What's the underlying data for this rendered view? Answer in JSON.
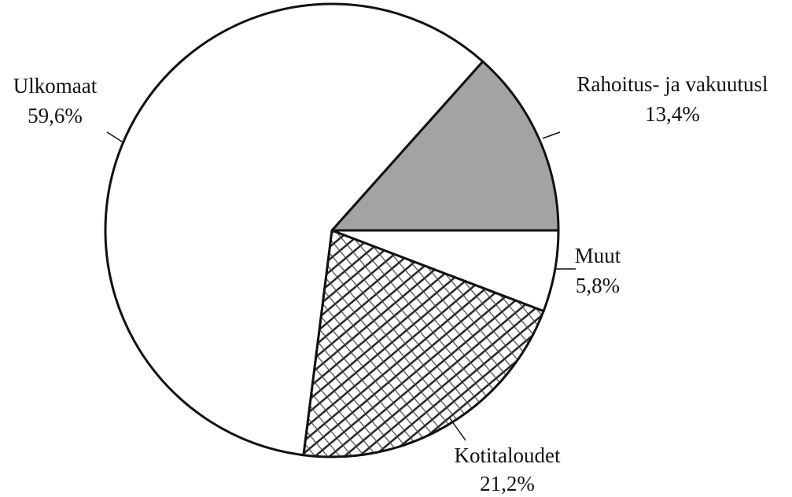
{
  "chart_data": {
    "type": "pie",
    "categories": [
      "Rahoitus- ja vakuutusl",
      "Muut",
      "Kotitaloudet",
      "Ulkomaat"
    ],
    "values": [
      13.4,
      5.8,
      21.2,
      59.6
    ],
    "value_labels": [
      "13,4%",
      "5,8%",
      "21,2%",
      "59,6%"
    ],
    "colors": [
      "#a3a3a3",
      "#ffffff",
      "#ffffff",
      "#ffffff"
    ],
    "patterns": [
      "solid",
      "solid",
      "crosshatch",
      "solid"
    ]
  }
}
